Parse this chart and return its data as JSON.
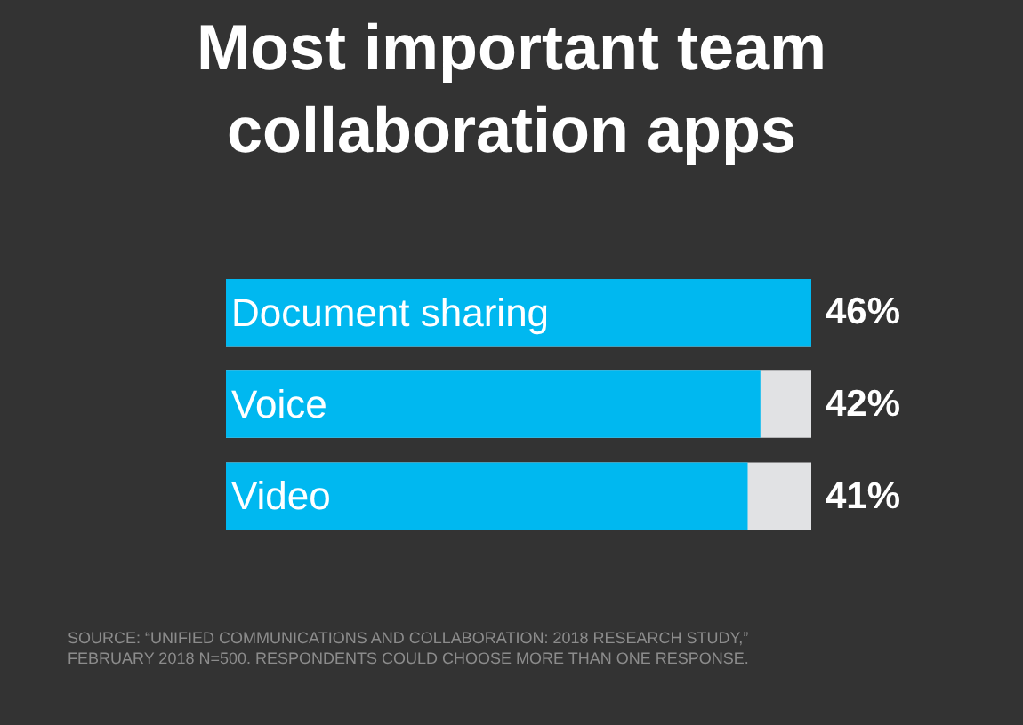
{
  "chart_data": {
    "type": "bar",
    "orientation": "horizontal",
    "title": "Most important team collaboration apps",
    "categories": [
      "Document sharing",
      "Voice",
      "Video"
    ],
    "values": [
      46,
      42,
      41
    ],
    "color": "#00b8f0",
    "value_labels": [
      "46%",
      "42%",
      "41%"
    ],
    "annotations": [
      "SOURCE: “UNIFIED COMMUNICATIONS AND COLLABORATION: 2018 RESEARCH STUDY,” FEBRUARY 2018 N=500. RESPONDENTS COULD CHOOSE MORE THAN ONE RESPONSE."
    ],
    "legend": false
  }
}
